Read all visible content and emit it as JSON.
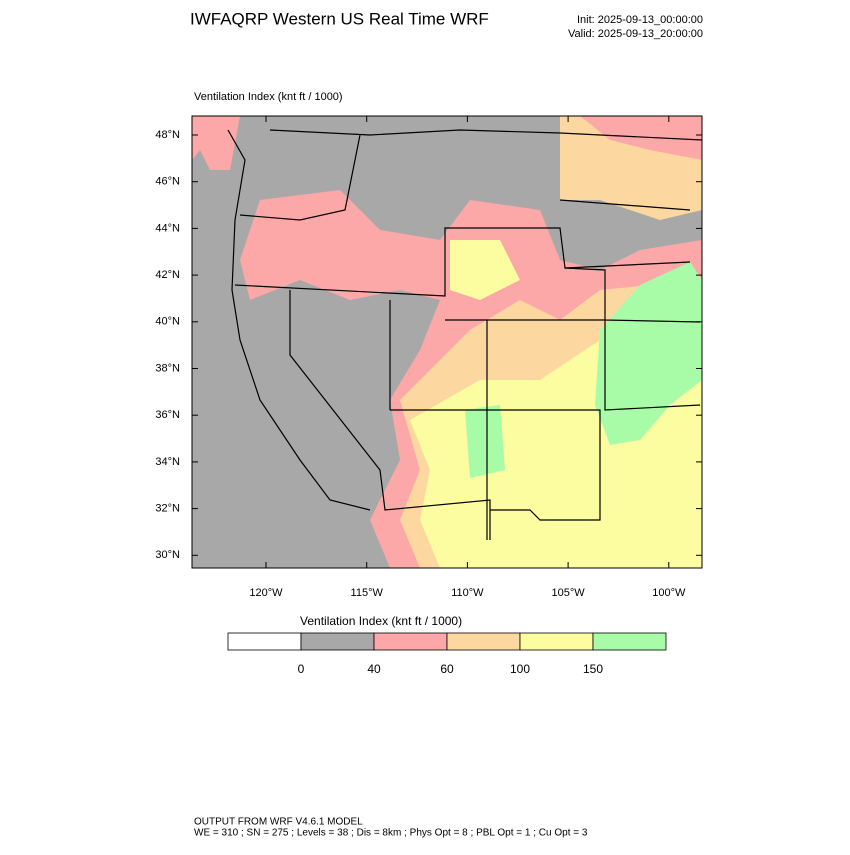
{
  "header": {
    "title": "IWFAQRP Western US Real Time WRF",
    "init": "Init: 2025-09-13_00:00:00",
    "valid": "Valid: 2025-09-13_20:00:00"
  },
  "map": {
    "label": "Ventilation Index   (knt ft / 1000)",
    "lat_labels": [
      "48°N",
      "46°N",
      "44°N",
      "42°N",
      "40°N",
      "38°N",
      "36°N",
      "34°N",
      "32°N",
      "30°N"
    ],
    "lon_labels": [
      "120°W",
      "115°W",
      "110°W",
      "105°W",
      "100°W"
    ]
  },
  "colorbar": {
    "title": "Ventilation Index   (knt ft / 1000)",
    "colors": [
      "#ffffff",
      "#a8a8a8",
      "#fca8a8",
      "#fcd8a0",
      "#fcfca0",
      "#a8fca8"
    ],
    "ticks": [
      0,
      40,
      60,
      100,
      150
    ]
  },
  "footer": {
    "line1": "OUTPUT FROM WRF V4.6.1 MODEL",
    "line2": "WE = 310 ; SN = 275 ; Levels = 38 ; Dis = 8km ; Phys Opt = 8 ; PBL Opt = 1 ; Cu Opt = 3"
  }
}
